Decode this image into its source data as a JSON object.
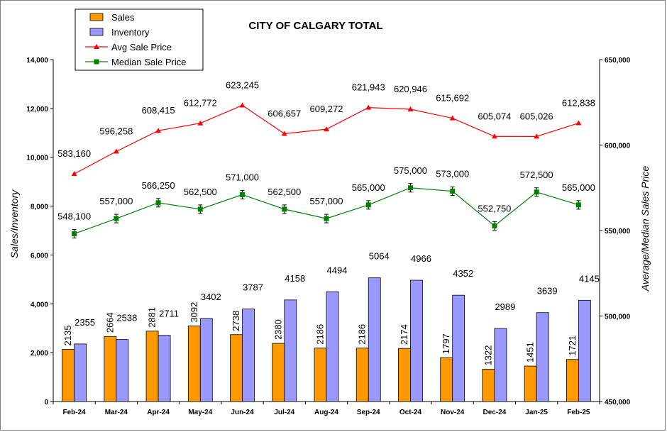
{
  "chart_data": {
    "type": "bar",
    "title": "CITY OF CALGARY TOTAL",
    "categories": [
      "Feb-24",
      "Mar-24",
      "Apr-24",
      "May-24",
      "Jun-24",
      "Jul-24",
      "Aug-24",
      "Sep-24",
      "Oct-24",
      "Nov-24",
      "Dec-24",
      "Jan-25",
      "Feb-25"
    ],
    "ylabel": "Sales/Inventory",
    "y2label": "Average/Median Sales Price",
    "ylim": [
      0,
      14000
    ],
    "y2lim": [
      450000,
      650000
    ],
    "yticks": [
      "0",
      "2,000",
      "4,000",
      "6,000",
      "8,000",
      "10,000",
      "12,000",
      "14,000"
    ],
    "y2ticks": [
      "450,000",
      "500,000",
      "550,000",
      "600,000",
      "650,000"
    ],
    "grid": false,
    "legend_position": "top-left",
    "series": [
      {
        "name": "Sales",
        "kind": "bar",
        "axis": "left",
        "color": "#FF9900",
        "values": [
          2135,
          2664,
          2881,
          3092,
          2738,
          2380,
          2186,
          2186,
          2174,
          1797,
          1322,
          1451,
          1721
        ],
        "labels": [
          "2135",
          "2664",
          "2881",
          "3092",
          "2738",
          "2380",
          "2186",
          "2186",
          "2174",
          "1797",
          "1322",
          "1451",
          "1721"
        ]
      },
      {
        "name": "Inventory",
        "kind": "bar",
        "axis": "left",
        "color": "#9999FF",
        "values": [
          2355,
          2538,
          2711,
          3402,
          3787,
          4158,
          4494,
          5064,
          4966,
          4352,
          2989,
          3639,
          4145
        ],
        "labels": [
          "2355",
          "2538",
          "2711",
          "3402",
          "3787",
          "4158",
          "4494",
          "5064",
          "4966",
          "4352",
          "2989",
          "3639",
          "4145"
        ]
      },
      {
        "name": "Avg Sale Price",
        "kind": "line",
        "axis": "right",
        "color": "#FF0000",
        "marker": "triangle",
        "values": [
          583160,
          596258,
          608415,
          612772,
          623245,
          606657,
          609272,
          621943,
          620946,
          615692,
          605074,
          605026,
          612838
        ],
        "labels": [
          "583,160",
          "596,258",
          "608,415",
          "612,772",
          "623,245",
          "606,657",
          "609,272",
          "621,943",
          "620,946",
          "615,692",
          "605,074",
          "605,026",
          "612,838"
        ]
      },
      {
        "name": "Median Sale Price",
        "kind": "line",
        "axis": "right",
        "color": "#008000",
        "marker": "square",
        "values": [
          548100,
          557000,
          566250,
          562500,
          571000,
          562500,
          557000,
          565000,
          575000,
          573000,
          552750,
          572500,
          565000
        ],
        "labels": [
          "548,100",
          "557,000",
          "566,250",
          "562,500",
          "571,000",
          "562,500",
          "557,000",
          "565,000",
          "575,000",
          "573,000",
          "552,750",
          "572,500",
          "565,000"
        ]
      }
    ]
  }
}
